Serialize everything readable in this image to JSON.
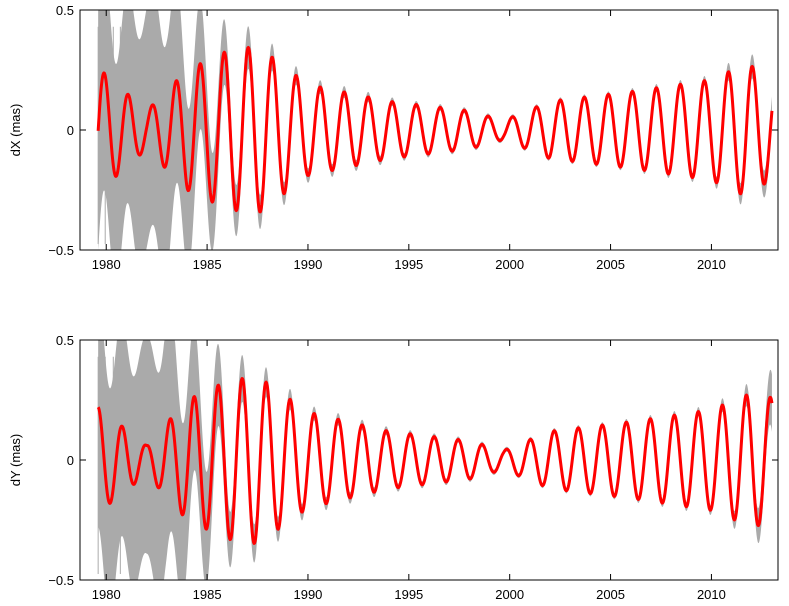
{
  "chart_data": [
    {
      "type": "line",
      "title": "",
      "xlabel": "",
      "ylabel": "dX (mas)",
      "xlim": [
        1978.7,
        2013.3
      ],
      "ylim": [
        -0.5,
        0.5
      ],
      "xticks": [
        1980,
        1985,
        1990,
        1995,
        2000,
        2005,
        2010
      ],
      "xtick_labels": [
        "1980",
        "1985",
        "1990",
        "1995",
        "2000",
        "2005",
        "2010"
      ],
      "yticks": [
        -0.5,
        0,
        0.5
      ],
      "ytick_labels": [
        "−0.5",
        "0",
        "0.5"
      ],
      "grid": false,
      "series": [
        {
          "color": "#aaaaaa",
          "style": "band",
          "description_role": "uncertainty-envelope",
          "x": [
            1979.6,
            1981.0,
            1982.0,
            1983.0,
            1984.0,
            1986.0,
            1988.0,
            1990.0,
            1995.0,
            2000.0,
            2005.0,
            2010.0,
            2011.0,
            2013.0
          ],
          "halfwidth": [
            0.5,
            0.45,
            0.5,
            0.5,
            0.35,
            0.12,
            0.06,
            0.03,
            0.015,
            0.01,
            0.012,
            0.02,
            0.04,
            0.06
          ]
        },
        {
          "color": "#ff0000",
          "style": "line",
          "x": [
            1979.6,
            1982.0,
            1984.0,
            1986.0,
            1987.5,
            1990.0,
            1994.0,
            1998.0,
            1999.7,
            2002.0,
            2006.0,
            2010.0,
            2011.8,
            2013.0
          ],
          "amplitude": [
            0.26,
            0.08,
            0.25,
            0.33,
            0.35,
            0.19,
            0.12,
            0.08,
            0.04,
            0.12,
            0.16,
            0.21,
            0.28,
            0.2
          ],
          "period_years": 1.19,
          "phase_peak_year": 1979.9
        }
      ]
    },
    {
      "type": "line",
      "title": "",
      "xlabel": "",
      "ylabel": "dY (mas)",
      "xlim": [
        1978.7,
        2013.3
      ],
      "ylim": [
        -0.5,
        0.5
      ],
      "xticks": [
        1980,
        1985,
        1990,
        1995,
        2000,
        2005,
        2010
      ],
      "xtick_labels": [
        "1980",
        "1985",
        "1990",
        "1995",
        "2000",
        "2005",
        "2010"
      ],
      "yticks": [
        -0.5,
        0,
        0.5
      ],
      "ytick_labels": [
        "−0.5",
        "0",
        "0.5"
      ],
      "grid": false,
      "series": [
        {
          "color": "#aaaaaa",
          "style": "band",
          "description_role": "uncertainty-envelope",
          "x": [
            1979.6,
            1981.0,
            1982.0,
            1983.0,
            1984.0,
            1986.0,
            1988.0,
            1990.0,
            1995.0,
            2000.0,
            2005.0,
            2010.0,
            2012.0,
            2013.0
          ],
          "halfwidth": [
            0.5,
            0.45,
            0.45,
            0.5,
            0.35,
            0.12,
            0.06,
            0.03,
            0.015,
            0.01,
            0.012,
            0.02,
            0.05,
            0.12
          ]
        },
        {
          "color": "#ff0000",
          "style": "line",
          "x": [
            1979.6,
            1982.0,
            1984.0,
            1986.0,
            1987.5,
            1990.0,
            1994.0,
            1998.0,
            1999.7,
            2002.0,
            2006.0,
            2010.0,
            2012.0,
            2013.0
          ],
          "amplitude": [
            0.22,
            0.06,
            0.25,
            0.33,
            0.35,
            0.2,
            0.12,
            0.08,
            0.04,
            0.12,
            0.16,
            0.21,
            0.28,
            0.26
          ],
          "period_years": 1.19,
          "phase_peak_year": 1979.6
        }
      ]
    }
  ]
}
